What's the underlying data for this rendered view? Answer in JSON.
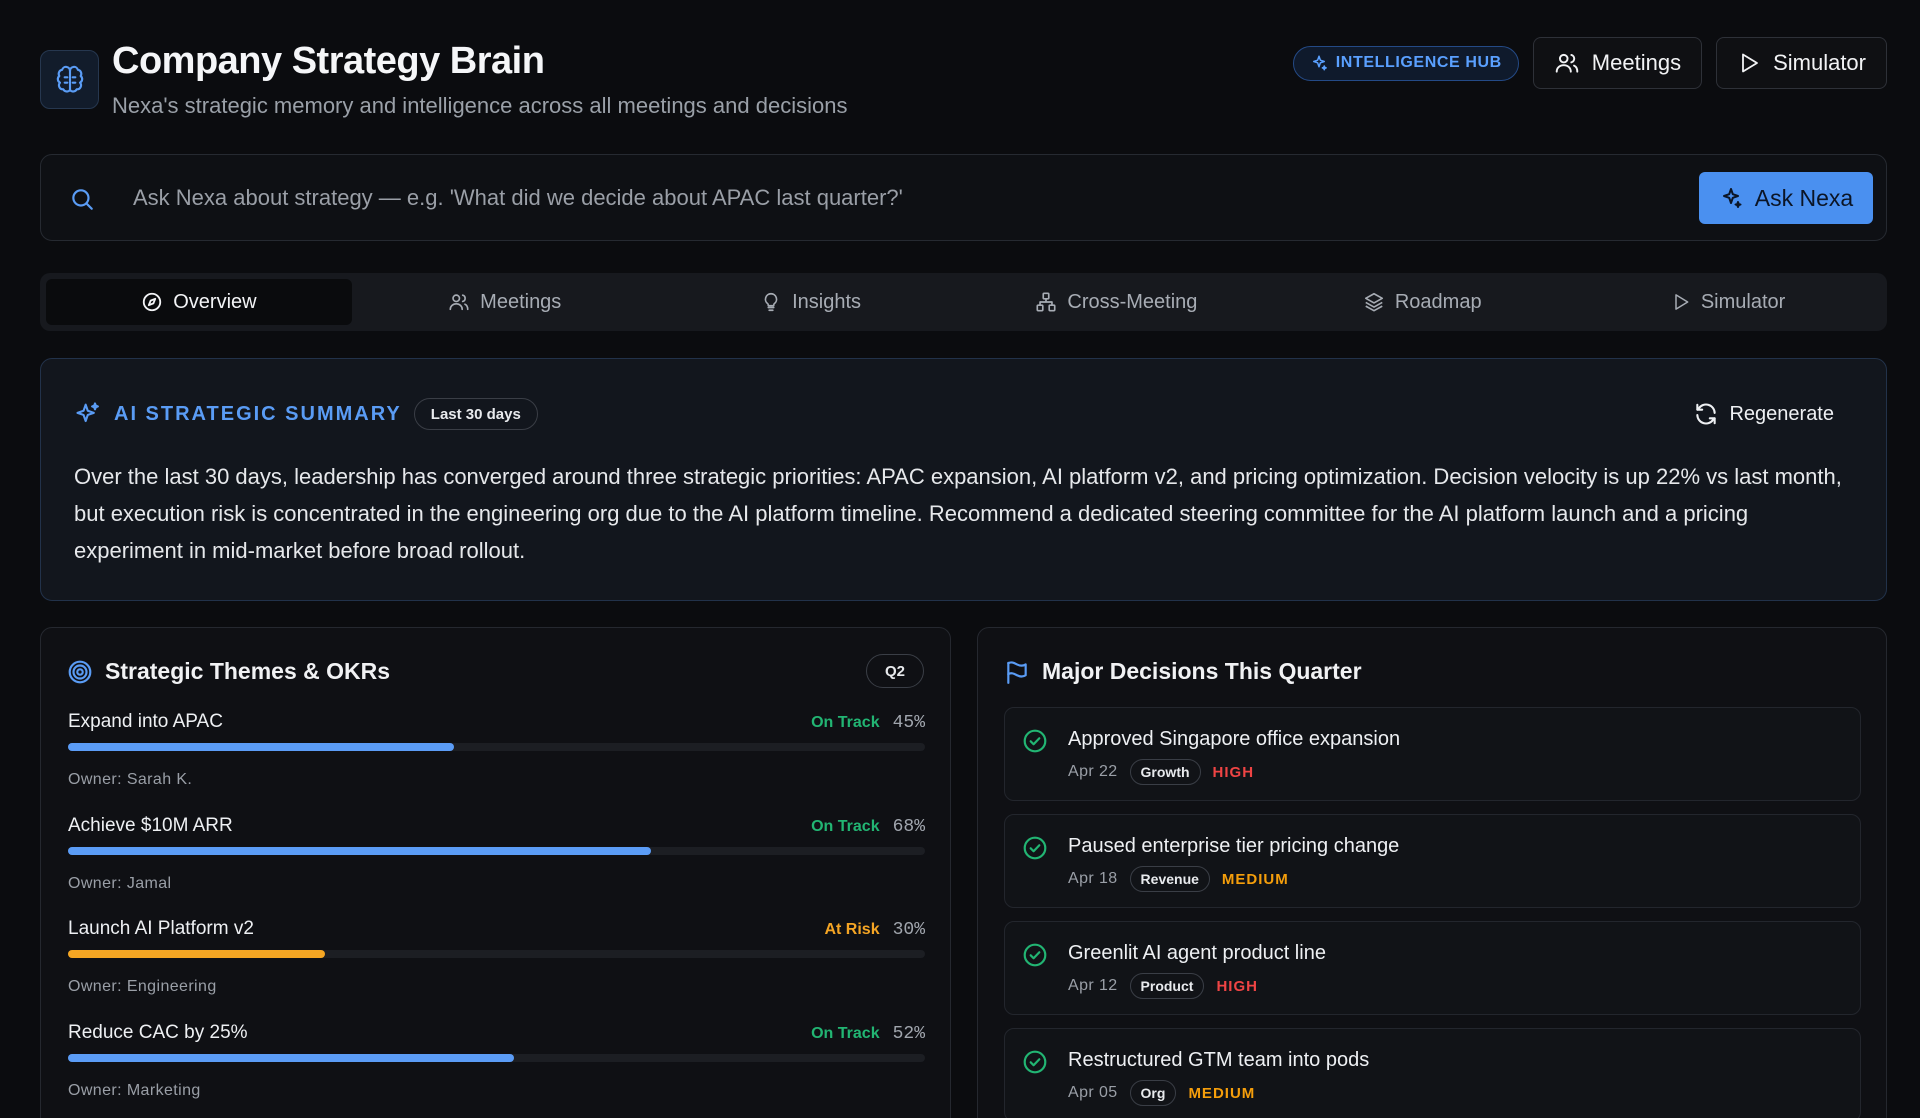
{
  "header": {
    "title": "Company Strategy Brain",
    "subtitle": "Nexa's strategic memory and intelligence across all meetings and decisions",
    "badge": "INTELLIGENCE HUB",
    "meetings_btn": "Meetings",
    "simulator_btn": "Simulator"
  },
  "search": {
    "placeholder": "Ask Nexa about strategy — e.g. 'What did we decide about APAC last quarter?'",
    "ask_btn": "Ask Nexa"
  },
  "tabs": [
    "Overview",
    "Meetings",
    "Insights",
    "Cross-Meeting",
    "Roadmap",
    "Simulator"
  ],
  "summary": {
    "title": "AI STRATEGIC SUMMARY",
    "period": "Last 30 days",
    "regenerate": "Regenerate",
    "text": "Over the last 30 days, leadership has converged around three strategic priorities: APAC expansion, AI platform v2, and pricing optimization. Decision velocity is up 22% vs last month, but execution risk is concentrated in the engineering org due to the AI platform timeline. Recommend a dedicated steering committee for the AI platform launch and a pricing experiment in mid-market before broad rollout."
  },
  "themes": {
    "title": "Strategic Themes & OKRs",
    "quarter": "Q2",
    "items": [
      {
        "name": "Expand into APAC",
        "status": "On Track",
        "pct": "45%",
        "progress": 0.45,
        "owner": "Owner: Sarah K."
      },
      {
        "name": "Achieve $10M ARR",
        "status": "On Track",
        "pct": "68%",
        "progress": 0.68,
        "owner": "Owner: Jamal"
      },
      {
        "name": "Launch AI Platform v2",
        "status": "At Risk",
        "pct": "30%",
        "progress": 0.3,
        "owner": "Owner: Engineering"
      },
      {
        "name": "Reduce CAC by 25%",
        "status": "On Track",
        "pct": "52%",
        "progress": 0.52,
        "owner": "Owner: Marketing"
      }
    ]
  },
  "decisions": {
    "title": "Major Decisions This Quarter",
    "items": [
      {
        "title": "Approved Singapore office expansion",
        "date": "Apr 22",
        "tag": "Growth",
        "priority": "HIGH"
      },
      {
        "title": "Paused enterprise tier pricing change",
        "date": "Apr 18",
        "tag": "Revenue",
        "priority": "MEDIUM"
      },
      {
        "title": "Greenlit AI agent product line",
        "date": "Apr 12",
        "tag": "Product",
        "priority": "HIGH"
      },
      {
        "title": "Restructured GTM team into pods",
        "date": "Apr 05",
        "tag": "Org",
        "priority": "MEDIUM"
      }
    ]
  },
  "colors": {
    "accent": "#4a90f0",
    "on_track": "#22b573",
    "at_risk": "#f5a524",
    "high": "#ef4444",
    "medium": "#f59e0b",
    "bar_blue": "#5b9cf6",
    "bar_amber": "#f5a623"
  }
}
